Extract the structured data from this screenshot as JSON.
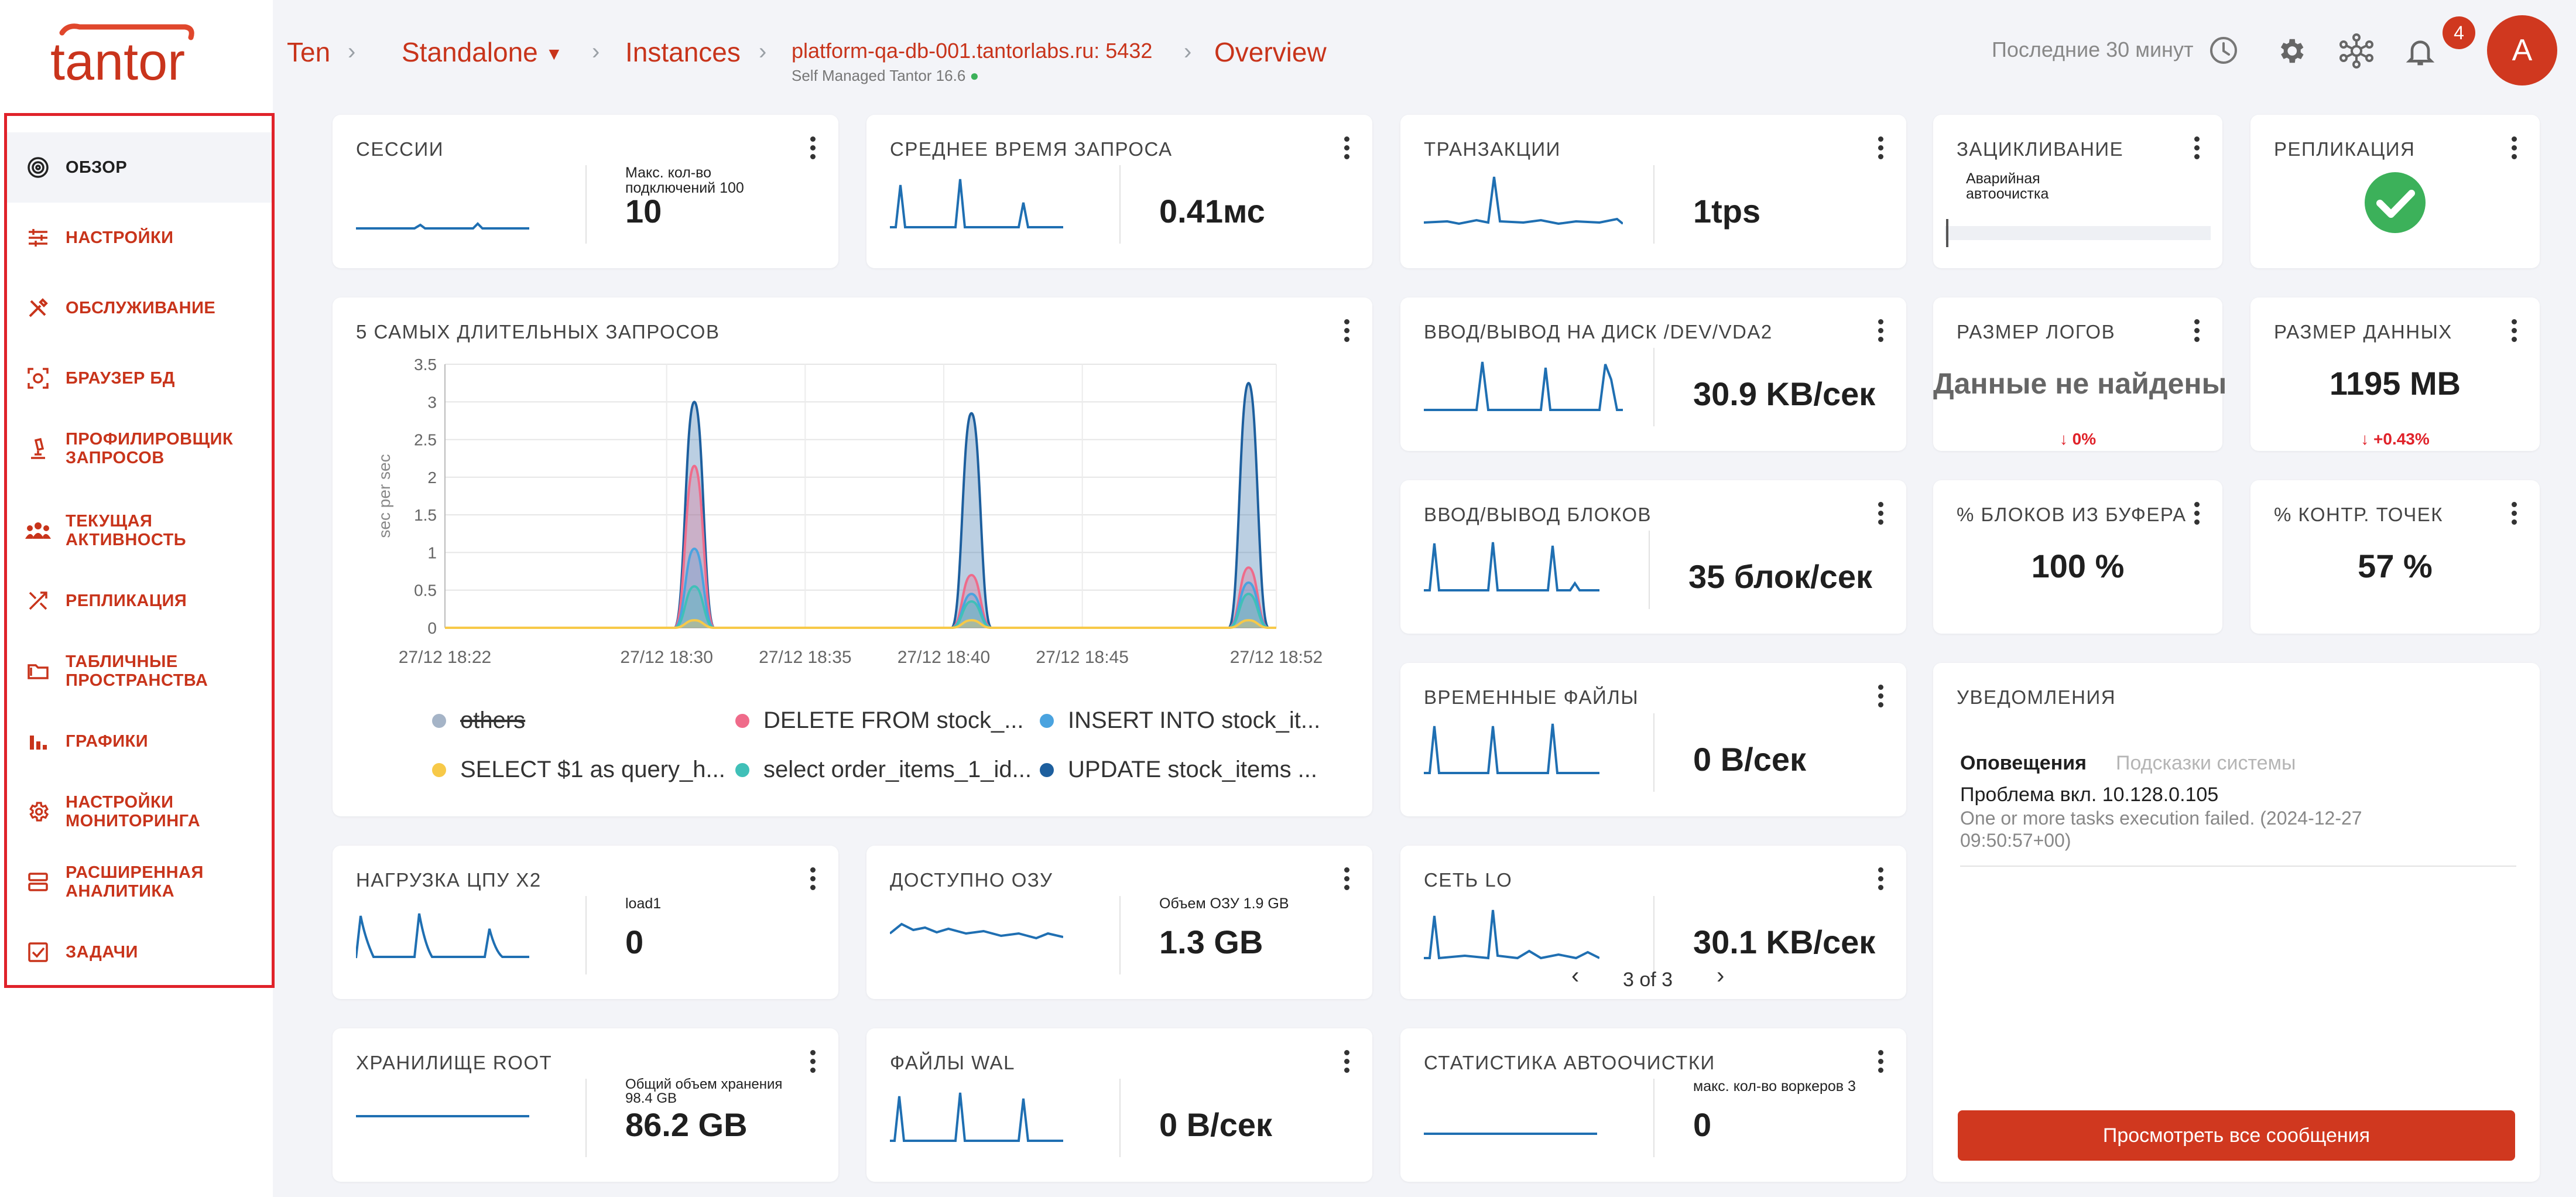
{
  "app": {
    "logo_text": "tantor",
    "avatar_letter": "A",
    "notifications_count": "4",
    "time_range": "Последние 30 минут"
  },
  "breadcrumb": {
    "root": "Ten",
    "env": "Standalone",
    "section": "Instances",
    "instance": "platform-qa-db-001.tantorlabs.ru: 5432",
    "instance_sub": "Self Managed Tantor 16.6",
    "page": "Overview"
  },
  "sidebar": {
    "items": [
      {
        "label": "ОБЗОР",
        "icon": "target-icon"
      },
      {
        "label": "НАСТРОЙКИ",
        "icon": "sliders-icon"
      },
      {
        "label": "ОБСЛУЖИВАНИЕ",
        "icon": "tools-icon"
      },
      {
        "label": "БРАУЗЕР БД",
        "icon": "scan-icon"
      },
      {
        "label": "ПРОФИЛИРОВЩИК ЗАПРОСОВ",
        "icon": "microscope-icon"
      },
      {
        "label": "ТЕКУЩАЯ АКТИВНОСТЬ",
        "icon": "people-icon"
      },
      {
        "label": "РЕПЛИКАЦИЯ",
        "icon": "replication-icon"
      },
      {
        "label": "ТАБЛИЧНЫЕ ПРОСТРАНСТВА",
        "icon": "folder-icon"
      },
      {
        "label": "ГРАФИКИ",
        "icon": "bar-chart-icon"
      },
      {
        "label": "НАСТРОЙКИ МОНИТОРИНГА",
        "icon": "gear-icon"
      },
      {
        "label": "РАСШИРЕННАЯ АНАЛИТИКА",
        "icon": "server-icon"
      },
      {
        "label": "ЗАДАЧИ",
        "icon": "task-check-icon"
      }
    ]
  },
  "cards": {
    "sessions": {
      "title": "СЕССИИ",
      "note": "Макс. кол-во подключений 100",
      "value": "10"
    },
    "avg_query": {
      "title": "СРЕДНЕЕ ВРЕМЯ ЗАПРОСА",
      "value": "0.41мс"
    },
    "transactions": {
      "title": "ТРАНЗАКЦИИ",
      "value": "1tps"
    },
    "wraparound": {
      "title": "ЗАЦИКЛИВАНИЕ",
      "note": "Аварийная автоочистка"
    },
    "replication": {
      "title": "РЕПЛИКАЦИЯ"
    },
    "disk_io": {
      "title": "ВВОД/ВЫВОД НА ДИСК /DEV/VDA2",
      "value": "30.9 KB/сек"
    },
    "log_size": {
      "title": "РАЗМЕР ЛОГОВ",
      "value": "Данные не найдены",
      "delta": "↓ 0%"
    },
    "data_size": {
      "title": "РАЗМЕР ДАННЫХ",
      "value": "1195 MB",
      "delta": "↓ +0.43%"
    },
    "block_io": {
      "title": "ВВОД/ВЫВОД БЛОКОВ",
      "value": "35 блок/сек"
    },
    "buffer_hit": {
      "title": "% БЛОКОВ ИЗ БУФЕРА",
      "value": "100 %"
    },
    "checkpoints": {
      "title": "% КОНТР. ТОЧЕК",
      "value": "57 %"
    },
    "temp_files": {
      "title": "ВРЕМЕННЫЕ ФАЙЛЫ",
      "value": "0 В/сек"
    },
    "cpu": {
      "title": "НАГРУЗКА ЦПУ X2",
      "note": "load1",
      "value": "0"
    },
    "ram": {
      "title": "ДОСТУПНО ОЗУ",
      "note": "Объем ОЗУ 1.9 GB",
      "value": "1.3 GB"
    },
    "net": {
      "title": "СЕТЬ LO",
      "value": "30.1 KB/сек",
      "pager": "3 of 3"
    },
    "storage": {
      "title": "ХРАНИЛИЩЕ ROOT",
      "note": "Общий объем хранения 98.4 GB",
      "value": "86.2 GB"
    },
    "wal": {
      "title": "ФАЙЛЫ WAL",
      "value": "0 В/сек"
    },
    "autovacuum": {
      "title": "СТАТИСТИКА АВТООЧИСТКИ",
      "note": "макс. кол-во воркеров 3",
      "value": "0"
    }
  },
  "notifications": {
    "title": "УВЕДОМЛЕНИЯ",
    "tab_active": "Оповещения",
    "tab_inactive": "Подсказки системы",
    "item_title": "Проблема вкл. 10.128.0.105",
    "item_text": "One or more tasks execution failed. (2024-12-27 09:50:57+00)",
    "button": "Просмотреть все сообщения"
  },
  "chart_data": {
    "type": "area",
    "title": "5 САМЫХ ДЛИТЕЛЬНЫХ ЗАПРОСОВ",
    "ylabel": "sec per sec",
    "ylim": [
      0,
      3.5
    ],
    "y_ticks": [
      "0",
      "0.5",
      "1",
      "1.5",
      "2",
      "2.5",
      "3",
      "3.5"
    ],
    "x_ticks": [
      "27/12 18:22",
      "27/12 18:30",
      "27/12 18:35",
      "27/12 18:40",
      "27/12 18:45",
      "27/12 18:52"
    ],
    "x_minutes": [
      0,
      8,
      13,
      18,
      23,
      30
    ],
    "xlim": [
      0,
      30
    ],
    "grid": true,
    "legend_position": "bottom",
    "series": [
      {
        "name": "others",
        "color": "#a5b4c7",
        "disabled": true,
        "peaks": [
          [
            9,
            0.0
          ],
          [
            19,
            0.0
          ],
          [
            29,
            0.0
          ]
        ]
      },
      {
        "name": "DELETE FROM stock_...",
        "color": "#ef6b8a",
        "peaks": [
          [
            9,
            2.15
          ],
          [
            19,
            0.7
          ],
          [
            29,
            0.8
          ]
        ]
      },
      {
        "name": "INSERT INTO stock_it...",
        "color": "#4aa3df",
        "peaks": [
          [
            9,
            1.05
          ],
          [
            19,
            0.45
          ],
          [
            29,
            0.6
          ]
        ]
      },
      {
        "name": "SELECT $1 as query_h...",
        "color": "#f7c948",
        "peaks": [
          [
            9,
            0.1
          ],
          [
            19,
            0.1
          ],
          [
            29,
            0.1
          ]
        ]
      },
      {
        "name": "select order_items_1_id...",
        "color": "#40c0b8",
        "peaks": [
          [
            9,
            0.55
          ],
          [
            19,
            0.35
          ],
          [
            29,
            0.45
          ]
        ]
      },
      {
        "name": "UPDATE stock_items ...",
        "color": "#1d5f9e",
        "peaks": [
          [
            9,
            3.0
          ],
          [
            19,
            2.85
          ],
          [
            29,
            3.25
          ]
        ]
      }
    ]
  }
}
